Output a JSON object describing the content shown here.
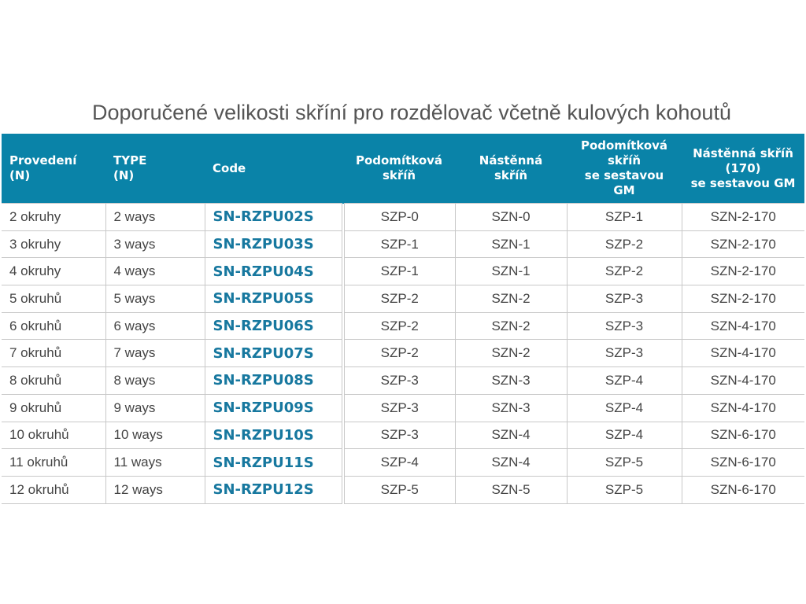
{
  "title": "Doporučené velikosti skříní pro rozdělovač včetně kulových kohoutů",
  "colors": {
    "header_bg": "#0a83a8",
    "code_text": "#17789f"
  },
  "headers": [
    "Provedení\n(N)",
    "TYPE\n(N)",
    "Code",
    "Podomítková\nskříň",
    "Nástěnná\nskříň",
    "Podomítková\nskříň\nse sestavou\nGM",
    "Nástěnná skříň\n(170)\nse sestavou GM"
  ],
  "rows": [
    [
      "2 okruhy",
      "2 ways",
      "SN-RZPU02S",
      "SZP-0",
      "SZN-0",
      "SZP-1",
      "SZN-2-170"
    ],
    [
      "3 okruhy",
      "3 ways",
      "SN-RZPU03S",
      "SZP-1",
      "SZN-1",
      "SZP-2",
      "SZN-2-170"
    ],
    [
      "4 okruhy",
      "4 ways",
      "SN-RZPU04S",
      "SZP-1",
      "SZN-1",
      "SZP-2",
      "SZN-2-170"
    ],
    [
      "5 okruhů",
      "5 ways",
      "SN-RZPU05S",
      "SZP-2",
      "SZN-2",
      "SZP-3",
      "SZN-2-170"
    ],
    [
      "6 okruhů",
      "6 ways",
      "SN-RZPU06S",
      "SZP-2",
      "SZN-2",
      "SZP-3",
      "SZN-4-170"
    ],
    [
      "7 okruhů",
      "7 ways",
      "SN-RZPU07S",
      "SZP-2",
      "SZN-2",
      "SZP-3",
      "SZN-4-170"
    ],
    [
      "8 okruhů",
      "8 ways",
      "SN-RZPU08S",
      "SZP-3",
      "SZN-3",
      "SZP-4",
      "SZN-4-170"
    ],
    [
      "9 okruhů",
      "9 ways",
      "SN-RZPU09S",
      "SZP-3",
      "SZN-3",
      "SZP-4",
      "SZN-4-170"
    ],
    [
      "10 okruhů",
      "10 ways",
      "SN-RZPU10S",
      "SZP-3",
      "SZN-4",
      "SZP-4",
      "SZN-6-170"
    ],
    [
      "11 okruhů",
      "11 ways",
      "SN-RZPU11S",
      "SZP-4",
      "SZN-4",
      "SZP-5",
      "SZN-6-170"
    ],
    [
      "12 okruhů",
      "12 ways",
      "SN-RZPU12S",
      "SZP-5",
      "SZN-5",
      "SZP-5",
      "SZN-6-170"
    ]
  ]
}
